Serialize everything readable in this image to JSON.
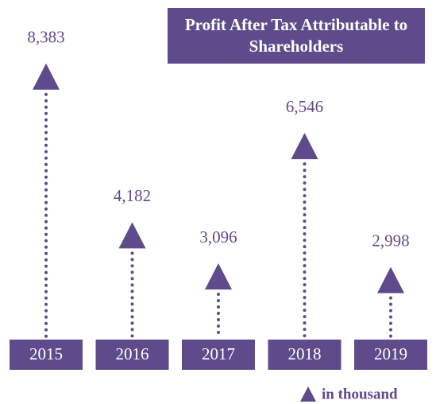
{
  "chart_data": {
    "type": "lollipop",
    "title": "Profit After Tax Attributable to Shareholders",
    "categories": [
      "2015",
      "2016",
      "2017",
      "2018",
      "2019"
    ],
    "values": [
      8383,
      4182,
      3096,
      6546,
      2998
    ],
    "value_labels": [
      "8,383",
      "4,182",
      "3,096",
      "6,546",
      "2,998"
    ],
    "color": "#5f4b8b",
    "unit_note": "in thousand"
  }
}
